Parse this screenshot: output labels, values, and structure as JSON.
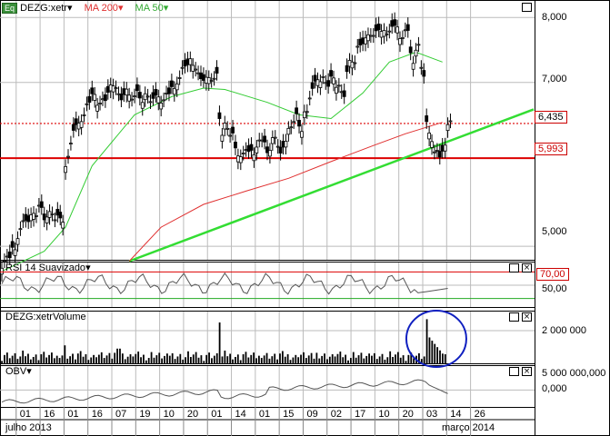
{
  "header": {
    "badge": "Eq",
    "symbol_label": "DEZG:xetr",
    "ma200_label": "MA 200",
    "ma50_label": "MA 50"
  },
  "rsi_panel": {
    "label": "RSI 14 Suavizado"
  },
  "volume_panel": {
    "label": "DEZG:xetrVolume"
  },
  "obv_panel": {
    "label": "OBV"
  },
  "colors": {
    "price": "#000000",
    "ma200": "#e03030",
    "ma50": "#33cc33",
    "trendline": "#33dd33",
    "support": "#dd0000",
    "annotation": "#1020c0",
    "rsi": "#555555"
  },
  "chart_data": [
    {
      "type": "candlestick",
      "title": "",
      "series": [
        {
          "name": "DEZG:xetr",
          "type": "price"
        },
        {
          "name": "MA 200",
          "type": "line"
        },
        {
          "name": "MA 50",
          "type": "line"
        }
      ],
      "y_ticks": [
        "8,000",
        "7,000",
        "5,000"
      ],
      "y_tick_values": [
        8.0,
        7.0,
        5.0
      ],
      "ylim": [
        4.9,
        8.2
      ],
      "scale": "log",
      "horizontal_lines": [
        {
          "label": "6,435",
          "value": 6.435,
          "style": "dotted"
        },
        {
          "label": "5,993",
          "value": 5.993,
          "style": "solid"
        }
      ],
      "trendline": {
        "from": [
          0.24,
          4.85
        ],
        "to": [
          1.0,
          6.55
        ]
      },
      "close_path": [
        [
          0.0,
          4.82
        ],
        [
          0.01,
          4.9
        ],
        [
          0.02,
          4.95
        ],
        [
          0.03,
          5.1
        ],
        [
          0.04,
          5.25
        ],
        [
          0.05,
          5.3
        ],
        [
          0.06,
          5.35
        ],
        [
          0.07,
          5.4
        ],
        [
          0.08,
          5.3
        ],
        [
          0.09,
          5.35
        ],
        [
          0.1,
          5.32
        ],
        [
          0.11,
          5.3
        ],
        [
          0.12,
          5.85
        ],
        [
          0.13,
          6.2
        ],
        [
          0.14,
          6.4
        ],
        [
          0.15,
          6.5
        ],
        [
          0.16,
          6.7
        ],
        [
          0.17,
          6.8
        ],
        [
          0.18,
          6.7
        ],
        [
          0.19,
          6.75
        ],
        [
          0.2,
          6.9
        ],
        [
          0.21,
          6.95
        ],
        [
          0.22,
          6.8
        ],
        [
          0.23,
          6.85
        ],
        [
          0.24,
          6.8
        ],
        [
          0.25,
          6.85
        ],
        [
          0.26,
          6.78
        ],
        [
          0.27,
          6.8
        ],
        [
          0.28,
          6.75
        ],
        [
          0.29,
          6.8
        ],
        [
          0.3,
          6.75
        ],
        [
          0.31,
          6.85
        ],
        [
          0.32,
          6.9
        ],
        [
          0.33,
          7.0
        ],
        [
          0.34,
          7.2
        ],
        [
          0.35,
          7.3
        ],
        [
          0.36,
          7.25
        ],
        [
          0.37,
          7.1
        ],
        [
          0.38,
          7.05
        ],
        [
          0.39,
          7.05
        ],
        [
          0.4,
          7.1
        ],
        [
          0.41,
          6.5
        ],
        [
          0.42,
          6.4
        ],
        [
          0.43,
          6.3
        ],
        [
          0.44,
          6.1
        ],
        [
          0.45,
          6.05
        ],
        [
          0.46,
          6.1
        ],
        [
          0.47,
          6.05
        ],
        [
          0.48,
          6.15
        ],
        [
          0.49,
          6.2
        ],
        [
          0.5,
          6.1
        ],
        [
          0.51,
          6.25
        ],
        [
          0.52,
          6.1
        ],
        [
          0.53,
          6.15
        ],
        [
          0.54,
          6.35
        ],
        [
          0.55,
          6.5
        ],
        [
          0.56,
          6.4
        ],
        [
          0.57,
          6.55
        ],
        [
          0.58,
          6.8
        ],
        [
          0.59,
          7.0
        ],
        [
          0.6,
          7.05
        ],
        [
          0.61,
          7.0
        ],
        [
          0.62,
          7.05
        ],
        [
          0.63,
          6.95
        ],
        [
          0.64,
          6.85
        ],
        [
          0.65,
          7.2
        ],
        [
          0.66,
          7.3
        ],
        [
          0.67,
          7.5
        ],
        [
          0.68,
          7.6
        ],
        [
          0.69,
          7.7
        ],
        [
          0.7,
          7.75
        ],
        [
          0.71,
          7.8
        ],
        [
          0.72,
          7.75
        ],
        [
          0.73,
          7.8
        ],
        [
          0.74,
          7.85
        ],
        [
          0.75,
          7.7
        ],
        [
          0.76,
          7.8
        ],
        [
          0.77,
          7.4
        ],
        [
          0.78,
          7.5
        ],
        [
          0.79,
          7.2
        ],
        [
          0.8,
          6.5
        ],
        [
          0.81,
          6.2
        ],
        [
          0.82,
          6.05
        ],
        [
          0.83,
          6.1
        ],
        [
          0.84,
          6.4
        ]
      ],
      "ma50_path": [
        [
          0.0,
          4.75
        ],
        [
          0.08,
          4.95
        ],
        [
          0.12,
          5.2
        ],
        [
          0.17,
          5.9
        ],
        [
          0.25,
          6.55
        ],
        [
          0.32,
          6.8
        ],
        [
          0.38,
          6.92
        ],
        [
          0.42,
          6.9
        ],
        [
          0.5,
          6.72
        ],
        [
          0.56,
          6.55
        ],
        [
          0.62,
          6.5
        ],
        [
          0.68,
          6.85
        ],
        [
          0.73,
          7.3
        ],
        [
          0.78,
          7.45
        ],
        [
          0.83,
          7.3
        ]
      ],
      "ma200_path": [
        [
          0.24,
          4.85
        ],
        [
          0.3,
          5.2
        ],
        [
          0.38,
          5.45
        ],
        [
          0.46,
          5.6
        ],
        [
          0.54,
          5.75
        ],
        [
          0.62,
          5.95
        ],
        [
          0.7,
          6.15
        ],
        [
          0.76,
          6.3
        ],
        [
          0.83,
          6.45
        ]
      ]
    },
    {
      "type": "line",
      "title": "RSI 14 Suavizado",
      "ref_lines": [
        {
          "label": "70,00",
          "value": 70
        },
        {
          "value": 30
        }
      ],
      "y_ticks": [
        "50,00"
      ],
      "ylim": [
        20,
        80
      ]
    },
    {
      "type": "bar",
      "title": "DEZG:xetrVolume",
      "y_ticks": [
        "2 000 000"
      ],
      "ylim": [
        0,
        3000000
      ],
      "spikes": [
        {
          "x": 0.12,
          "value": 1100000
        },
        {
          "x": 0.22,
          "value": 900000
        },
        {
          "x": 0.41,
          "value": 2500000
        },
        {
          "x": 0.8,
          "value": 2700000
        }
      ]
    },
    {
      "type": "line",
      "title": "OBV",
      "y_ticks": [
        "5 000 000,000",
        "0,000"
      ],
      "ylim": [
        -5000000,
        7000000
      ]
    }
  ],
  "x_axis": {
    "ticks": [
      "01",
      "16",
      "01",
      "16",
      "07",
      "19",
      "10",
      "20",
      "01",
      "14",
      "01",
      "15",
      "09",
      "02",
      "17",
      "10",
      "20",
      "03",
      "14",
      "26"
    ],
    "month_labels": [
      "julho 2013",
      "março 2014"
    ]
  }
}
